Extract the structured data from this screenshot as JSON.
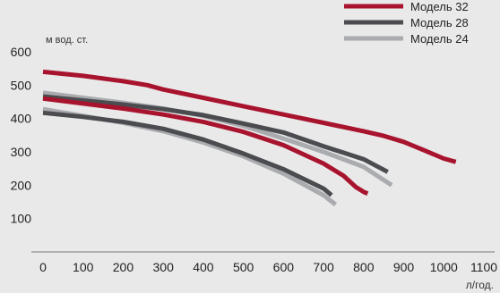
{
  "chart_data": {
    "type": "line",
    "title": "",
    "xlabel": "л/год.",
    "ylabel": "м вод. ст.",
    "xlim": [
      0,
      1100
    ],
    "ylim": [
      0,
      600
    ],
    "x_ticks": [
      0,
      100,
      200,
      300,
      400,
      500,
      600,
      700,
      800,
      900,
      1000,
      1100
    ],
    "y_ticks": [
      100,
      200,
      300,
      400,
      500,
      600
    ],
    "grid": false,
    "legend_position": "top-right",
    "series": [
      {
        "name": "Модель 32",
        "color": "#a8132d",
        "curves": [
          [
            [
              0,
              540
            ],
            [
              100,
              528
            ],
            [
              200,
              512
            ],
            [
              260,
              500
            ],
            [
              300,
              487
            ],
            [
              400,
              462
            ],
            [
              500,
              437
            ],
            [
              600,
              412
            ],
            [
              700,
              387
            ],
            [
              800,
              362
            ],
            [
              850,
              348
            ],
            [
              900,
              330
            ],
            [
              950,
              305
            ],
            [
              1000,
              280
            ],
            [
              1030,
              270
            ]
          ],
          [
            [
              0,
              460
            ],
            [
              100,
              445
            ],
            [
              200,
              430
            ],
            [
              300,
              412
            ],
            [
              400,
              390
            ],
            [
              500,
              360
            ],
            [
              600,
              320
            ],
            [
              700,
              265
            ],
            [
              750,
              228
            ],
            [
              780,
              195
            ],
            [
              800,
              180
            ],
            [
              810,
              175
            ]
          ]
        ]
      },
      {
        "name": "Модель 28",
        "color": "#4a4c4f",
        "curves": [
          [
            [
              0,
              466
            ],
            [
              100,
              454
            ],
            [
              200,
              442
            ],
            [
              300,
              428
            ],
            [
              400,
              410
            ],
            [
              500,
              385
            ],
            [
              600,
              358
            ],
            [
              700,
              317
            ],
            [
              800,
              278
            ],
            [
              860,
              240
            ]
          ],
          [
            [
              0,
              417
            ],
            [
              100,
              405
            ],
            [
              200,
              390
            ],
            [
              300,
              369
            ],
            [
              400,
              337
            ],
            [
              500,
              295
            ],
            [
              600,
              248
            ],
            [
              700,
              190
            ],
            [
              720,
              170
            ]
          ]
        ]
      },
      {
        "name": "Модель 24",
        "color": "#a9abae",
        "curves": [
          [
            [
              0,
              477
            ],
            [
              100,
              462
            ],
            [
              200,
              447
            ],
            [
              300,
              430
            ],
            [
              400,
              408
            ],
            [
              500,
              378
            ],
            [
              600,
              340
            ],
            [
              700,
              300
            ],
            [
              800,
              255
            ],
            [
              870,
              200
            ]
          ],
          [
            [
              0,
              428
            ],
            [
              100,
              408
            ],
            [
              200,
              387
            ],
            [
              300,
              362
            ],
            [
              400,
              328
            ],
            [
              500,
              287
            ],
            [
              600,
              235
            ],
            [
              700,
              170
            ],
            [
              730,
              142
            ]
          ]
        ]
      }
    ]
  }
}
